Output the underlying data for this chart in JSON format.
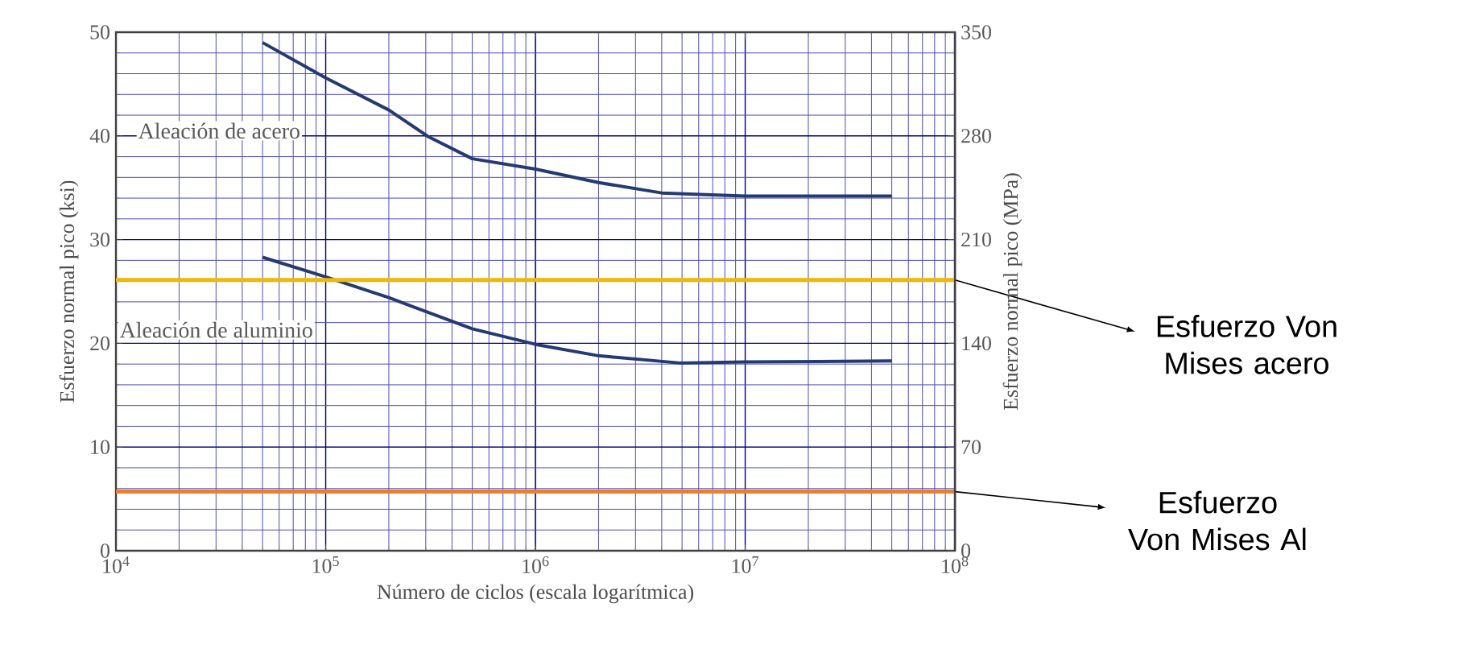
{
  "chart_data": {
    "type": "line",
    "xlabel": "Número de ciclos (escala logarítmica)",
    "ylabel": "Esfuerzo normal pico (ksi)",
    "y2label": "Esfuerzo normal pico (MPa)",
    "log": "x",
    "xlim": [
      10000,
      100000000
    ],
    "xticks": [
      {
        "value": 10000,
        "label": "10$^{4}$"
      },
      {
        "value": 100000,
        "label": "10$^{5}$"
      },
      {
        "value": 1000000,
        "label": "10$^{6}$"
      },
      {
        "value": 10000000,
        "label": "10$^{7}$"
      },
      {
        "value": 100000000,
        "label": "10$^{8}$"
      }
    ],
    "ylim": [
      0,
      50
    ],
    "yticks": [
      0,
      10,
      20,
      30,
      40,
      50
    ],
    "y2lim": [
      0,
      350
    ],
    "y2ticks": [
      0,
      70,
      140,
      210,
      280,
      350
    ],
    "grid": true,
    "marker": "none",
    "line_style": "solid",
    "series": [
      {
        "name": "Aleación de acero",
        "color": "#233a72",
        "x": [
          50000,
          100000,
          200000,
          310000,
          500000,
          1000000,
          2000000,
          4000000,
          10000000,
          50000000
        ],
        "values": [
          49.0,
          45.6,
          42.5,
          39.9,
          37.8,
          36.8,
          35.5,
          34.5,
          34.2,
          34.2
        ]
      },
      {
        "name": "Aleación de aluminio",
        "color": "#233a72",
        "x": [
          50000,
          100000,
          200000,
          500000,
          1000000,
          2000000,
          4900000,
          10000000,
          50000000
        ],
        "values": [
          28.3,
          26.4,
          24.4,
          21.4,
          19.9,
          18.8,
          18.1,
          18.2,
          18.3
        ]
      }
    ],
    "ref_lines": [
      {
        "axis": "y",
        "value": 26.1,
        "label": "Esfuerzo Von Mises acero",
        "color": "#f2b705"
      },
      {
        "axis": "y",
        "value": 5.7,
        "label": "Esfuerzo Von Mises Al",
        "color": "#ed7d31"
      }
    ]
  }
}
